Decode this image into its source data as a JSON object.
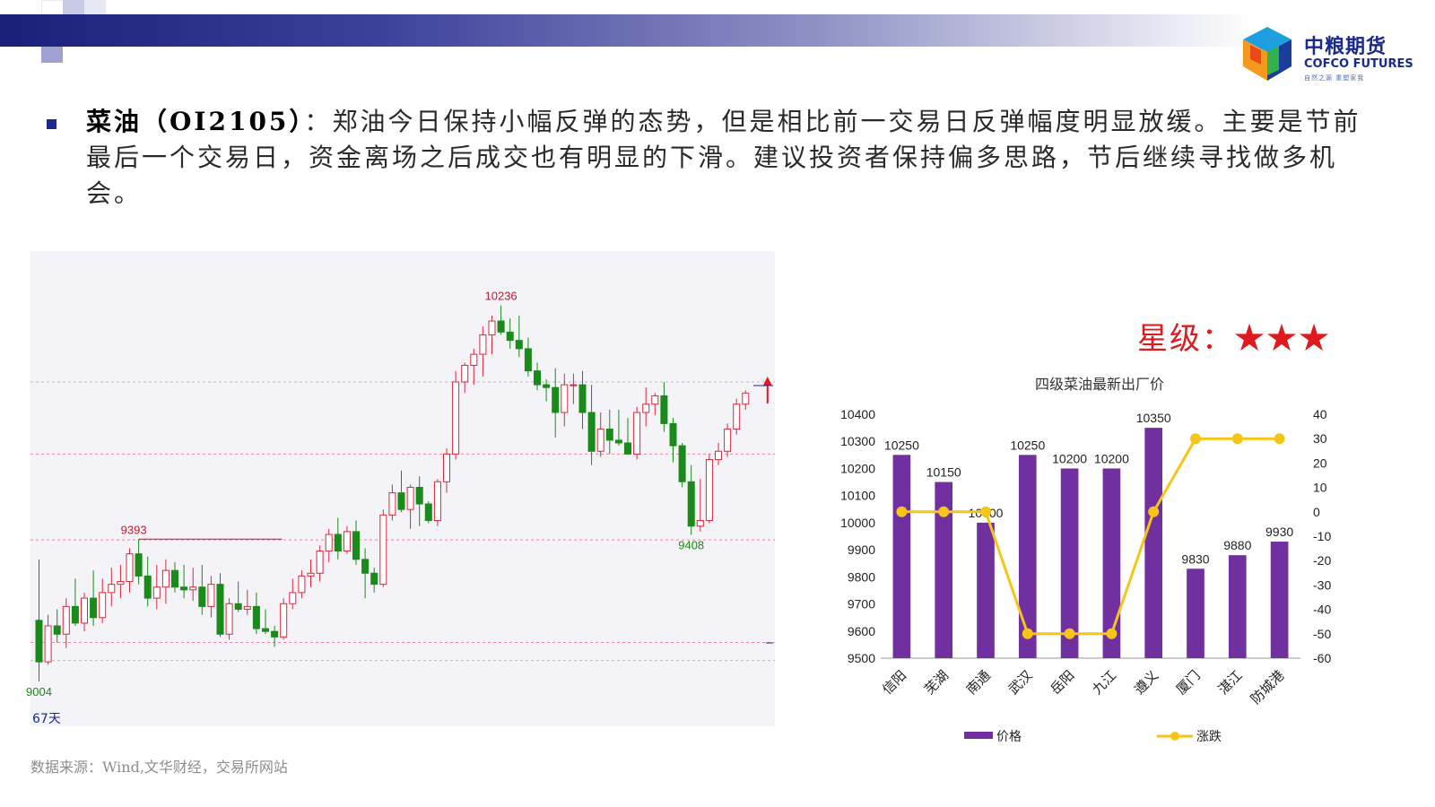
{
  "header": {
    "logo": {
      "name_cn": "中粮期货",
      "name_en": "COFCO FUTURES",
      "slogan": "自然之源 重塑家我"
    }
  },
  "commentary": {
    "title": "菜油（OI2105）",
    "separator": "：",
    "body": "郑油今日保持小幅反弹的态势，但是相比前一交易日反弹幅度明显放缓。主要是节前最后一个交易日，资金离场之后成交也有明显的下滑。建议投资者保持偏多思路，节后继续寻找做多机会。"
  },
  "rating": {
    "label": "星级：",
    "stars": "★★★"
  },
  "chart_data": [
    {
      "type": "candlestick",
      "annotations": {
        "high_label": "10236",
        "left_high_label": "9393",
        "low_label": "9004",
        "recent_low_label": "9408",
        "period_label": "67天"
      },
      "colors": {
        "up": "#d9283e",
        "down": "#1a8a1a"
      },
      "ylim": [
        8750,
        10400
      ],
      "ohlc": [
        [
          9100,
          9320,
          8880,
          8950
        ],
        [
          8950,
          9120,
          8940,
          9080
        ],
        [
          9080,
          9140,
          9020,
          9050
        ],
        [
          9050,
          9180,
          9000,
          9150
        ],
        [
          9150,
          9250,
          9080,
          9090
        ],
        [
          9090,
          9200,
          9060,
          9180
        ],
        [
          9180,
          9280,
          9080,
          9110
        ],
        [
          9110,
          9250,
          9090,
          9200
        ],
        [
          9200,
          9290,
          9150,
          9230
        ],
        [
          9230,
          9300,
          9180,
          9240
        ],
        [
          9240,
          9360,
          9200,
          9340
        ],
        [
          9340,
          9393,
          9230,
          9260
        ],
        [
          9260,
          9330,
          9150,
          9180
        ],
        [
          9180,
          9300,
          9140,
          9220
        ],
        [
          9220,
          9320,
          9160,
          9280
        ],
        [
          9280,
          9310,
          9200,
          9220
        ],
        [
          9220,
          9300,
          9180,
          9210
        ],
        [
          9210,
          9290,
          9170,
          9220
        ],
        [
          9220,
          9300,
          9120,
          9150
        ],
        [
          9150,
          9260,
          9110,
          9230
        ],
        [
          9230,
          9270,
          9040,
          9050
        ],
        [
          9050,
          9180,
          9030,
          9160
        ],
        [
          9160,
          9240,
          9130,
          9140
        ],
        [
          9140,
          9210,
          9120,
          9150
        ],
        [
          9150,
          9200,
          9050,
          9070
        ],
        [
          9070,
          9140,
          9050,
          9060
        ],
        [
          9060,
          9080,
          9004,
          9040
        ],
        [
          9040,
          9180,
          9030,
          9160
        ],
        [
          9160,
          9250,
          9140,
          9200
        ],
        [
          9200,
          9280,
          9180,
          9260
        ],
        [
          9260,
          9320,
          9220,
          9270
        ],
        [
          9270,
          9370,
          9240,
          9350
        ],
        [
          9350,
          9430,
          9310,
          9410
        ],
        [
          9410,
          9470,
          9320,
          9350
        ],
        [
          9350,
          9440,
          9340,
          9420
        ],
        [
          9420,
          9460,
          9300,
          9320
        ],
        [
          9320,
          9360,
          9180,
          9270
        ],
        [
          9270,
          9290,
          9200,
          9230
        ],
        [
          9230,
          9500,
          9220,
          9480
        ],
        [
          9480,
          9590,
          9460,
          9560
        ],
        [
          9560,
          9640,
          9490,
          9500
        ],
        [
          9500,
          9590,
          9430,
          9580
        ],
        [
          9580,
          9620,
          9440,
          9520
        ],
        [
          9520,
          9530,
          9450,
          9460
        ],
        [
          9460,
          9610,
          9440,
          9600
        ],
        [
          9600,
          9720,
          9560,
          9700
        ],
        [
          9700,
          10000,
          9680,
          9960
        ],
        [
          9960,
          10030,
          9920,
          10020
        ],
        [
          10020,
          10080,
          9950,
          10060
        ],
        [
          10060,
          10160,
          9980,
          10130
        ],
        [
          10130,
          10200,
          10060,
          10180
        ],
        [
          10180,
          10236,
          10130,
          10140
        ],
        [
          10140,
          10190,
          10080,
          10110
        ],
        [
          10110,
          10200,
          10050,
          10080
        ],
        [
          10080,
          10120,
          9980,
          10000
        ],
        [
          10000,
          10030,
          9930,
          9950
        ],
        [
          9950,
          9970,
          9890,
          9940
        ],
        [
          9940,
          10010,
          9760,
          9850
        ],
        [
          9850,
          9990,
          9800,
          9950
        ],
        [
          9950,
          9990,
          9880,
          9950
        ],
        [
          9950,
          10000,
          9790,
          9850
        ],
        [
          9850,
          9950,
          9660,
          9710
        ],
        [
          9710,
          9850,
          9690,
          9790
        ],
        [
          9790,
          9860,
          9700,
          9750
        ],
        [
          9750,
          9860,
          9730,
          9740
        ],
        [
          9740,
          9830,
          9700,
          9700
        ],
        [
          9700,
          9870,
          9680,
          9850
        ],
        [
          9850,
          9940,
          9800,
          9880
        ],
        [
          9880,
          9920,
          9840,
          9910
        ],
        [
          9910,
          9960,
          9780,
          9810
        ],
        [
          9810,
          9830,
          9670,
          9730
        ],
        [
          9730,
          9740,
          9580,
          9600
        ],
        [
          9600,
          9660,
          9408,
          9440
        ],
        [
          9440,
          9610,
          9420,
          9460
        ],
        [
          9460,
          9700,
          9450,
          9680
        ],
        [
          9680,
          9740,
          9660,
          9710
        ],
        [
          9710,
          9810,
          9690,
          9790
        ],
        [
          9790,
          9900,
          9770,
          9880
        ],
        [
          9880,
          9930,
          9860,
          9920
        ]
      ]
    },
    {
      "type": "bar-line-combo",
      "title": "四级菜油最新出厂价",
      "categories": [
        "信阳",
        "芜湖",
        "南通",
        "武汉",
        "岳阳",
        "九江",
        "遵义",
        "厦门",
        "湛江",
        "防城港"
      ],
      "series": [
        {
          "name": "价格",
          "type": "bar",
          "axis": "left",
          "color": "#7030a0",
          "values": [
            10250,
            10150,
            10000,
            10250,
            10200,
            10200,
            10350,
            9830,
            9880,
            9930
          ]
        },
        {
          "name": "涨跌",
          "type": "line",
          "axis": "right",
          "color": "#f5c518",
          "values": [
            0,
            0,
            0,
            -50,
            -50,
            -50,
            0,
            30,
            30,
            30
          ]
        }
      ],
      "y_left": {
        "min": 9500,
        "max": 10400,
        "ticks": [
          9500,
          9600,
          9700,
          9800,
          9900,
          10000,
          10100,
          10200,
          10300,
          10400
        ]
      },
      "y_right": {
        "min": -60,
        "max": 40,
        "ticks": [
          -60,
          -50,
          -40,
          -30,
          -20,
          -10,
          0,
          10,
          20,
          30,
          40
        ]
      },
      "legend_position": "bottom"
    }
  ],
  "footer": {
    "source": "数据来源：Wind,文华财经，交易所网站"
  }
}
